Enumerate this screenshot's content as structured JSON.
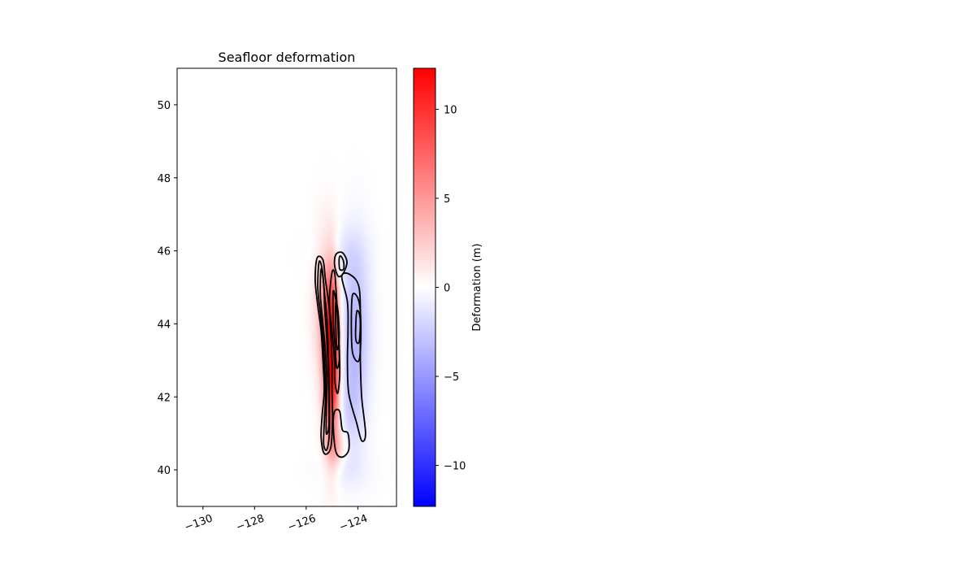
{
  "chart_data": {
    "type": "heatmap",
    "title": "Seafloor deformation",
    "xlabel": "",
    "ylabel": "",
    "xlim": [
      -131,
      -122.5
    ],
    "ylim": [
      39,
      51
    ],
    "x_ticks": [
      -130,
      -128,
      -126,
      -124
    ],
    "x_tick_labels": [
      "−130",
      "−128",
      "−126",
      "−124"
    ],
    "y_ticks": [
      40,
      42,
      44,
      46,
      48,
      50
    ],
    "y_tick_labels": [
      "40",
      "42",
      "44",
      "46",
      "48",
      "50"
    ],
    "grid": false,
    "colormap": "bwr",
    "colormap_colors": [
      "#0000ff",
      "#ffffff",
      "#ff0000"
    ],
    "colorbar": {
      "label": "Deformation (m)",
      "range": [
        -12.3,
        12.3
      ],
      "ticks": [
        10,
        5,
        0,
        -5,
        -10
      ],
      "tick_labels": [
        "10",
        "5",
        "0",
        "−5",
        "−10"
      ],
      "placement": "right"
    },
    "features": [
      {
        "kind": "uplift",
        "lon": -125.0,
        "lat": 43.2,
        "peak": 12.0,
        "lon_width": 0.2,
        "lat_width": 1.5
      },
      {
        "kind": "uplift",
        "lon": -125.3,
        "lat": 44.5,
        "peak": 3.5,
        "lon_width": 0.3,
        "lat_width": 1.3
      },
      {
        "kind": "uplift",
        "lon": -125.1,
        "lat": 42.0,
        "peak": 2.0,
        "lon_width": 0.25,
        "lat_width": 1.4
      },
      {
        "kind": "uplift",
        "lon": -124.8,
        "lat": 40.6,
        "peak": 2.5,
        "lon_width": 0.25,
        "lat_width": 0.35
      },
      {
        "kind": "subsidence",
        "lon": -124.1,
        "lat": 43.8,
        "peak": -3.5,
        "lon_width": 0.4,
        "lat_width": 1.6
      },
      {
        "kind": "subsidence",
        "lon": -124.3,
        "lat": 41.6,
        "peak": -1.4,
        "lon_width": 0.35,
        "lat_width": 0.9
      },
      {
        "kind": "subsidence",
        "lon": -124.7,
        "lat": 45.9,
        "peak": -1.0,
        "lon_width": 0.7,
        "lat_width": 0.5
      },
      {
        "kind": "subsidence",
        "lon": -124.5,
        "lat": 40.0,
        "peak": -0.8,
        "lon_width": 0.7,
        "lat_width": 0.4
      }
    ],
    "contours": [
      {
        "lat_lon": [
          [
            45.8,
            -125.58
          ],
          [
            45.2,
            -125.65
          ],
          [
            44.5,
            -125.55
          ],
          [
            43.8,
            -125.42
          ],
          [
            43.0,
            -125.35
          ],
          [
            42.2,
            -125.3
          ],
          [
            41.5,
            -125.38
          ],
          [
            40.9,
            -125.42
          ],
          [
            40.45,
            -125.3
          ],
          [
            40.6,
            -125.05
          ],
          [
            41.4,
            -124.98
          ],
          [
            42.2,
            -125.0
          ],
          [
            43.0,
            -125.0
          ],
          [
            43.8,
            -125.05
          ],
          [
            44.5,
            -125.12
          ],
          [
            45.2,
            -125.25
          ],
          [
            45.75,
            -125.35
          ]
        ]
      },
      {
        "lat_lon": [
          [
            45.7,
            -125.5
          ],
          [
            45.0,
            -125.55
          ],
          [
            44.3,
            -125.45
          ],
          [
            43.6,
            -125.35
          ],
          [
            42.8,
            -125.28
          ],
          [
            42.0,
            -125.25
          ],
          [
            41.3,
            -125.3
          ],
          [
            40.7,
            -125.32
          ],
          [
            40.55,
            -125.2
          ],
          [
            41.0,
            -125.1
          ],
          [
            41.8,
            -125.1
          ],
          [
            42.6,
            -125.12
          ],
          [
            43.4,
            -125.15
          ],
          [
            44.2,
            -125.2
          ],
          [
            44.9,
            -125.3
          ],
          [
            45.5,
            -125.38
          ]
        ]
      },
      {
        "lat_lon": [
          [
            45.5,
            -125.42
          ],
          [
            44.8,
            -125.45
          ],
          [
            44.0,
            -125.35
          ],
          [
            43.2,
            -125.25
          ],
          [
            42.4,
            -125.2
          ],
          [
            41.6,
            -125.22
          ],
          [
            41.0,
            -125.22
          ],
          [
            41.2,
            -125.12
          ],
          [
            42.0,
            -125.12
          ],
          [
            42.8,
            -125.15
          ],
          [
            43.6,
            -125.2
          ],
          [
            44.4,
            -125.28
          ],
          [
            45.1,
            -125.32
          ]
        ]
      },
      {
        "lat_lon": [
          [
            45.4,
            -125.0
          ],
          [
            44.6,
            -125.1
          ],
          [
            43.8,
            -125.0
          ],
          [
            43.0,
            -124.9
          ],
          [
            42.4,
            -124.88
          ],
          [
            42.1,
            -124.78
          ],
          [
            42.6,
            -124.7
          ],
          [
            43.4,
            -124.72
          ],
          [
            44.2,
            -124.78
          ],
          [
            45.0,
            -124.85
          ],
          [
            45.4,
            -124.9
          ]
        ]
      },
      {
        "lat_lon": [
          [
            44.9,
            -124.95
          ],
          [
            44.1,
            -124.95
          ],
          [
            43.4,
            -124.88
          ],
          [
            42.8,
            -124.82
          ],
          [
            43.0,
            -124.72
          ],
          [
            43.7,
            -124.75
          ],
          [
            44.5,
            -124.82
          ]
        ]
      },
      {
        "lat_lon": [
          [
            44.6,
            -124.85
          ],
          [
            43.9,
            -124.85
          ],
          [
            43.3,
            -124.8
          ],
          [
            43.6,
            -124.72
          ],
          [
            44.3,
            -124.76
          ]
        ]
      },
      {
        "lat_lon": [
          [
            41.2,
            -124.95
          ],
          [
            40.5,
            -124.85
          ],
          [
            40.35,
            -124.6
          ],
          [
            40.55,
            -124.35
          ],
          [
            41.0,
            -124.38
          ],
          [
            41.1,
            -124.6
          ],
          [
            41.6,
            -124.7
          ],
          [
            41.6,
            -124.9
          ]
        ]
      },
      {
        "lat_lon": [
          [
            45.3,
            -124.62
          ],
          [
            44.6,
            -124.4
          ],
          [
            43.8,
            -124.38
          ],
          [
            43.0,
            -124.4
          ],
          [
            42.1,
            -124.35
          ],
          [
            41.3,
            -124.05
          ],
          [
            40.8,
            -123.85
          ],
          [
            41.0,
            -123.7
          ],
          [
            42.0,
            -123.85
          ],
          [
            43.0,
            -123.9
          ],
          [
            44.0,
            -123.9
          ],
          [
            45.0,
            -123.95
          ],
          [
            45.35,
            -124.3
          ]
        ]
      },
      {
        "lat_lon": [
          [
            44.8,
            -124.2
          ],
          [
            44.0,
            -124.25
          ],
          [
            43.2,
            -124.2
          ],
          [
            43.0,
            -123.95
          ],
          [
            43.8,
            -123.88
          ],
          [
            44.6,
            -123.95
          ]
        ]
      },
      {
        "lat_lon": [
          [
            44.3,
            -124.05
          ],
          [
            43.6,
            -124.08
          ],
          [
            43.5,
            -123.95
          ],
          [
            44.0,
            -123.9
          ],
          [
            44.3,
            -123.95
          ]
        ]
      },
      {
        "lat_lon": [
          [
            45.8,
            -124.72
          ],
          [
            45.5,
            -124.7
          ],
          [
            45.5,
            -124.55
          ],
          [
            45.7,
            -124.55
          ],
          [
            45.85,
            -124.65
          ]
        ]
      },
      {
        "lat_lon": [
          [
            45.9,
            -124.85
          ],
          [
            45.6,
            -124.9
          ],
          [
            45.3,
            -124.75
          ],
          [
            45.4,
            -124.55
          ],
          [
            45.7,
            -124.42
          ],
          [
            45.95,
            -124.6
          ]
        ]
      }
    ]
  }
}
